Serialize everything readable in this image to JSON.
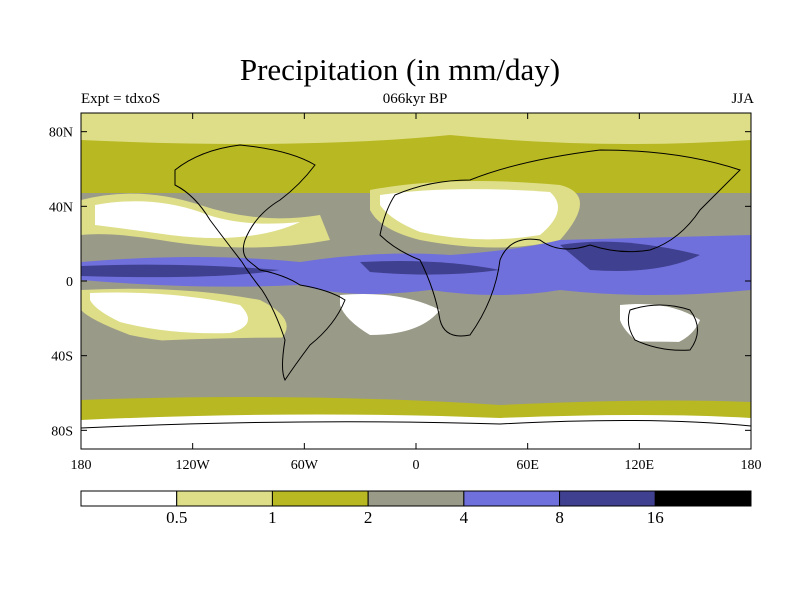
{
  "chart_data": {
    "type": "heatmap",
    "title": "Precipitation (in mm/day)",
    "left_label": "Expt = tdxoS",
    "center_label": "066kyr BP",
    "right_label": "JJA",
    "x_ticks": [
      {
        "lon": -180,
        "label": "180"
      },
      {
        "lon": -120,
        "label": "120W"
      },
      {
        "lon": -60,
        "label": "60W"
      },
      {
        "lon": 0,
        "label": "0"
      },
      {
        "lon": 60,
        "label": "60E"
      },
      {
        "lon": 120,
        "label": "120E"
      },
      {
        "lon": 180,
        "label": "180"
      }
    ],
    "y_ticks": [
      {
        "lat": 80,
        "label": "80N"
      },
      {
        "lat": 40,
        "label": "40N"
      },
      {
        "lat": 0,
        "label": "0"
      },
      {
        "lat": -40,
        "label": "40S"
      },
      {
        "lat": -80,
        "label": "80S"
      }
    ],
    "xlim": [
      -180,
      180
    ],
    "ylim": [
      -90,
      90
    ],
    "colorbar": {
      "colors": [
        "#ffffff",
        "#dede88",
        "#b8b822",
        "#9a9a88",
        "#7070dd",
        "#404090",
        "#000000"
      ],
      "levels": [
        "0.5",
        "1",
        "2",
        "4",
        "8",
        "16"
      ]
    }
  }
}
